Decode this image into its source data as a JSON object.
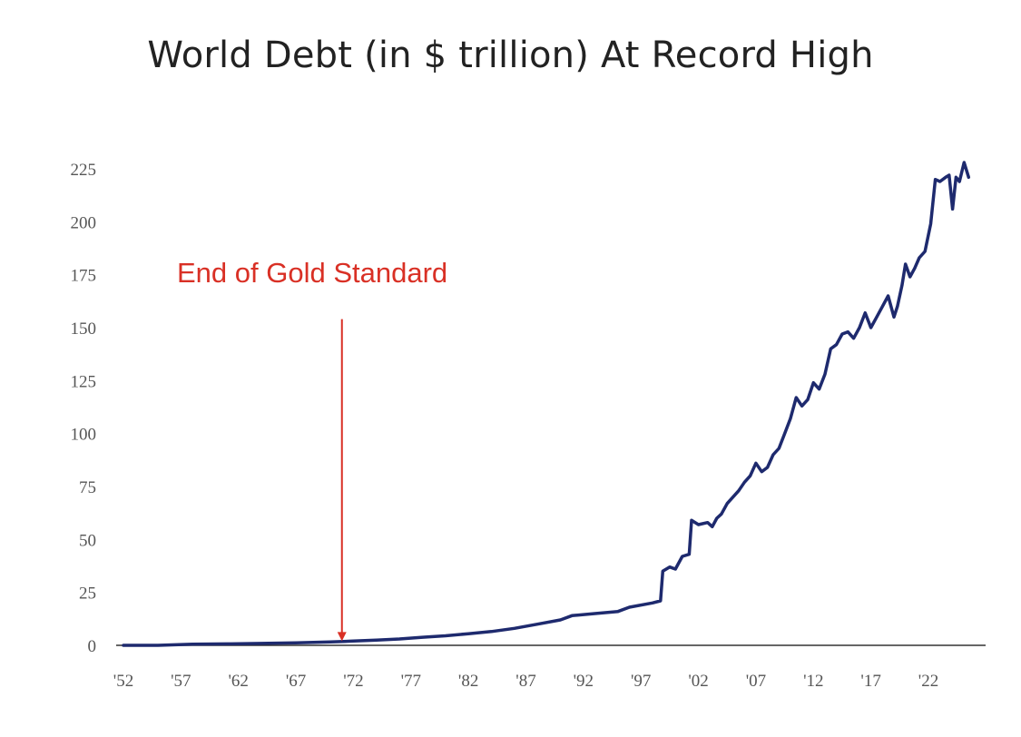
{
  "chart_data": {
    "type": "line",
    "title": "World Debt (in $ trillion) At Record High",
    "xlabel": "",
    "ylabel": "",
    "ylim": [
      0,
      225
    ],
    "xlim": [
      1952,
      2025
    ],
    "grid": false,
    "legend": "none",
    "colors": {
      "line": "#1e2a6e",
      "annotation": "#d93025",
      "axis": "#333333",
      "tick_text": "#555555"
    },
    "y_ticks": [
      "0",
      "25",
      "50",
      "75",
      "100",
      "125",
      "150",
      "175",
      "200",
      "225"
    ],
    "y_tick_values": [
      0,
      25,
      50,
      75,
      100,
      125,
      150,
      175,
      200,
      225
    ],
    "x_ticks": [
      "'52",
      "'57",
      "'62",
      "'67",
      "'72",
      "'77",
      "'82",
      "'87",
      "'92",
      "'97",
      "'02",
      "'07",
      "'12",
      "'17",
      "'22"
    ],
    "x_tick_values": [
      1952,
      1957,
      1962,
      1967,
      1972,
      1977,
      1982,
      1987,
      1992,
      1997,
      2002,
      2007,
      2012,
      2017,
      2022
    ],
    "annotations": [
      {
        "text": "End of Gold Standard",
        "x": 1971,
        "arrow_from_y": 154,
        "arrow_to_y": 2
      }
    ],
    "series": [
      {
        "values": [
          [
            1952,
            0
          ],
          [
            1955,
            0
          ],
          [
            1958,
            0.5
          ],
          [
            1961,
            0.7
          ],
          [
            1964,
            0.9
          ],
          [
            1967,
            1.2
          ],
          [
            1970,
            1.6
          ],
          [
            1972,
            2
          ],
          [
            1974,
            2.5
          ],
          [
            1976,
            3
          ],
          [
            1978,
            3.8
          ],
          [
            1980,
            4.5
          ],
          [
            1982,
            5.5
          ],
          [
            1984,
            6.5
          ],
          [
            1986,
            8
          ],
          [
            1988,
            10
          ],
          [
            1990,
            12
          ],
          [
            1991,
            14
          ],
          [
            1993,
            15
          ],
          [
            1995,
            16
          ],
          [
            1996,
            18
          ],
          [
            1998,
            20
          ],
          [
            1998.7,
            21
          ],
          [
            1998.9,
            35
          ],
          [
            1999.5,
            37
          ],
          [
            2000,
            36
          ],
          [
            2000.6,
            42
          ],
          [
            2001.2,
            43
          ],
          [
            2001.4,
            59
          ],
          [
            2002,
            57
          ],
          [
            2002.8,
            58
          ],
          [
            2003.2,
            56
          ],
          [
            2003.6,
            60
          ],
          [
            2004,
            62
          ],
          [
            2004.5,
            67
          ],
          [
            2005,
            70
          ],
          [
            2005.5,
            73
          ],
          [
            2006,
            77
          ],
          [
            2006.5,
            80
          ],
          [
            2007,
            86
          ],
          [
            2007.5,
            82
          ],
          [
            2008,
            84
          ],
          [
            2008.5,
            90
          ],
          [
            2009,
            93
          ],
          [
            2009.5,
            100
          ],
          [
            2010,
            107
          ],
          [
            2010.5,
            117
          ],
          [
            2011,
            113
          ],
          [
            2011.5,
            116
          ],
          [
            2012,
            124
          ],
          [
            2012.5,
            121
          ],
          [
            2013,
            128
          ],
          [
            2013.5,
            140
          ],
          [
            2014,
            142
          ],
          [
            2014.5,
            147
          ],
          [
            2015,
            148
          ],
          [
            2015.5,
            145
          ],
          [
            2016,
            150
          ],
          [
            2016.5,
            157
          ],
          [
            2017,
            150
          ],
          [
            2017.5,
            155
          ],
          [
            2018,
            160
          ],
          [
            2018.5,
            165
          ],
          [
            2019,
            155
          ],
          [
            2019.3,
            160
          ],
          [
            2019.7,
            170
          ],
          [
            2020,
            180
          ],
          [
            2020.4,
            174
          ],
          [
            2020.8,
            178
          ],
          [
            2021.2,
            183
          ],
          [
            2021.7,
            186
          ],
          [
            2022.2,
            199
          ],
          [
            2022.6,
            220
          ],
          [
            2023,
            219
          ],
          [
            2023.5,
            221
          ],
          [
            2023.8,
            222
          ],
          [
            2024.1,
            206
          ],
          [
            2024.4,
            221
          ],
          [
            2024.7,
            219
          ],
          [
            2025.1,
            228
          ],
          [
            2025.5,
            221
          ]
        ]
      }
    ]
  }
}
